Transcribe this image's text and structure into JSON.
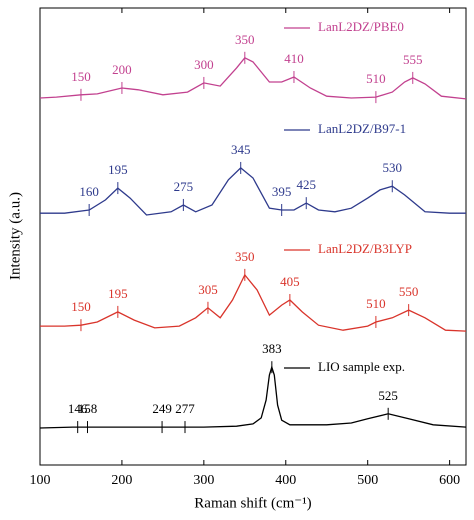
{
  "chart_data": {
    "type": "line",
    "xlabel": "Raman shift (cm⁻¹)",
    "ylabel": "Intensity (a.u.)",
    "xlim": [
      100,
      620
    ],
    "xticks": [
      100,
      200,
      300,
      400,
      500,
      600
    ],
    "ylim": [
      0,
      100
    ],
    "series": [
      {
        "name": "LanL2DZ/PBE0",
        "color": "#c2418f",
        "x": [
          100,
          120,
          150,
          170,
          200,
          220,
          250,
          280,
          300,
          320,
          340,
          350,
          360,
          380,
          395,
          410,
          430,
          450,
          480,
          510,
          530,
          545,
          555,
          570,
          590,
          620
        ],
        "values": [
          80.3,
          80.5,
          81.0,
          81.2,
          82.5,
          82.1,
          81.0,
          81.6,
          83.6,
          82.9,
          86.9,
          89.1,
          88.2,
          83.8,
          83.8,
          84.9,
          82.5,
          80.7,
          80.3,
          80.5,
          81.6,
          83.8,
          84.7,
          83.4,
          80.7,
          80.1
        ],
        "peaks": [
          150,
          200,
          300,
          350,
          410,
          510,
          555
        ]
      },
      {
        "name": "LanL2DZ/B97-1",
        "color": "#2e3a8c",
        "x": [
          100,
          130,
          160,
          180,
          195,
          210,
          230,
          260,
          275,
          290,
          310,
          330,
          345,
          360,
          380,
          395,
          410,
          425,
          440,
          460,
          480,
          500,
          515,
          530,
          545,
          570,
          600,
          620
        ],
        "values": [
          55.1,
          55.1,
          55.8,
          58.0,
          60.6,
          58.4,
          54.7,
          55.4,
          56.9,
          55.4,
          56.9,
          62.4,
          65.0,
          62.8,
          56.2,
          55.8,
          55.8,
          57.3,
          55.8,
          55.4,
          56.2,
          58.4,
          60.2,
          61.0,
          59.1,
          55.4,
          55.1,
          55.1
        ],
        "peaks": [
          160,
          195,
          275,
          345,
          395,
          425,
          530
        ]
      },
      {
        "name": "LanL2DZ/B3LYP",
        "color": "#d9342b",
        "x": [
          100,
          130,
          150,
          170,
          195,
          215,
          240,
          270,
          290,
          305,
          320,
          335,
          350,
          365,
          380,
          395,
          405,
          420,
          440,
          470,
          500,
          510,
          530,
          550,
          570,
          595,
          620
        ],
        "values": [
          30.4,
          30.4,
          30.6,
          31.3,
          33.5,
          31.7,
          30.0,
          30.4,
          32.2,
          34.4,
          32.2,
          36.1,
          41.6,
          38.3,
          32.8,
          35.0,
          36.1,
          33.5,
          30.6,
          29.5,
          30.4,
          31.3,
          32.2,
          33.9,
          32.2,
          29.5,
          29.3
        ],
        "peaks": [
          150,
          195,
          305,
          350,
          405,
          510,
          550
        ]
      },
      {
        "name": "LIO sample exp.",
        "color": "#000000",
        "x": [
          100,
          140,
          200,
          250,
          300,
          340,
          360,
          370,
          376,
          380,
          383,
          386,
          390,
          395,
          405,
          450,
          480,
          500,
          525,
          550,
          580,
          620
        ],
        "values": [
          8.1,
          8.3,
          8.3,
          8.3,
          8.3,
          8.5,
          9.0,
          10.3,
          14.2,
          19.7,
          21.4,
          19.7,
          13.1,
          9.8,
          8.8,
          8.8,
          9.2,
          10.1,
          11.2,
          10.1,
          8.8,
          8.3
        ],
        "peaks": [
          146,
          158,
          249,
          277,
          383,
          525
        ]
      }
    ]
  }
}
